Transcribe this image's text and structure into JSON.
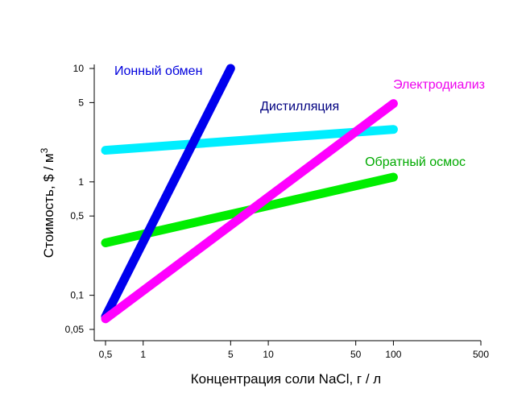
{
  "chart_data": {
    "type": "line",
    "title": "",
    "xlabel": "Концентрация соли NaCl, г / л",
    "ylabel_main": "Стоимость, $ / м",
    "ylabel_sup": "3",
    "x_scale": "log",
    "y_scale": "log",
    "xlim": [
      0.5,
      500
    ],
    "ylim": [
      0.05,
      10
    ],
    "grid": false,
    "legend": "none",
    "x_ticks": [
      {
        "value": 0.5,
        "label": "0,5"
      },
      {
        "value": 1,
        "label": "1"
      },
      {
        "value": 5,
        "label": "5"
      },
      {
        "value": 10,
        "label": "10"
      },
      {
        "value": 50,
        "label": "50"
      },
      {
        "value": 100,
        "label": "100"
      },
      {
        "value": 500,
        "label": "500"
      }
    ],
    "y_ticks": [
      {
        "value": 0.05,
        "label": "0,05"
      },
      {
        "value": 0.1,
        "label": "0,1"
      },
      {
        "value": 0.5,
        "label": "0,5"
      },
      {
        "value": 1,
        "label": "1"
      },
      {
        "value": 5,
        "label": "5"
      },
      {
        "value": 10,
        "label": "10"
      }
    ],
    "series": [
      {
        "name": "Ионный обмен",
        "color": "#0000ee",
        "points": [
          [
            0.5,
            0.065
          ],
          [
            5,
            10
          ]
        ]
      },
      {
        "name": "Дистилляция",
        "color": "#00eeff",
        "points": [
          [
            0.5,
            1.9
          ],
          [
            100,
            2.9
          ]
        ]
      },
      {
        "name": "Электродиализ",
        "color": "#ff00ff",
        "points": [
          [
            0.5,
            0.062
          ],
          [
            100,
            4.9
          ]
        ]
      },
      {
        "name": "Обратный осмос",
        "color": "#00ee00",
        "points": [
          [
            0.5,
            0.29
          ],
          [
            100,
            1.1
          ]
        ]
      }
    ],
    "series_label_colors": [
      "#0000dd",
      "#000080",
      "#ee00ee",
      "#00aa00"
    ]
  }
}
